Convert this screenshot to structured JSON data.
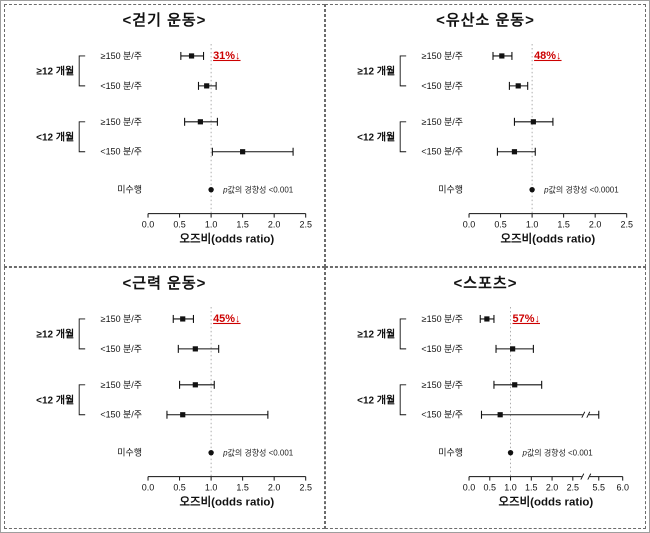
{
  "chart_data": [
    {
      "type": "forest",
      "title": "<걷기 운동>",
      "xlabel": "오즈비(odds ratio)",
      "x_ticks": [
        "0.0",
        "0.5",
        "1.0",
        "1.5",
        "2.0",
        "2.5"
      ],
      "x_tick_values": [
        0,
        0.5,
        1.0,
        1.5,
        2.0,
        2.5
      ],
      "xlim": [
        0,
        2.5
      ],
      "ref_line": 1.0,
      "grid": false,
      "annotation": "31%↓",
      "annotation_color": "#cc0000",
      "p_trend": "p값의 경향성 <0.001",
      "groups": [
        {
          "label": "≥12 개월",
          "rows": [
            {
              "label": "≥150 분/주",
              "or": 0.69,
              "ci_low": 0.52,
              "ci_high": 0.88
            },
            {
              "label": "<150 분/주",
              "or": 0.93,
              "ci_low": 0.8,
              "ci_high": 1.08
            }
          ]
        },
        {
          "label": "<12 개월",
          "rows": [
            {
              "label": "≥150 분/주",
              "or": 0.83,
              "ci_low": 0.58,
              "ci_high": 1.1
            },
            {
              "label": "<150 분/주",
              "or": 1.5,
              "ci_low": 1.02,
              "ci_high": 2.3
            }
          ]
        }
      ],
      "no_exercise": {
        "label": "미수행",
        "or": 1.0
      }
    },
    {
      "type": "forest",
      "title": "<유산소 운동>",
      "xlabel": "오즈비(odds ratio)",
      "x_ticks": [
        "0.0",
        "0.5",
        "1.0",
        "1.5",
        "2.0",
        "2.5"
      ],
      "x_tick_values": [
        0,
        0.5,
        1.0,
        1.5,
        2.0,
        2.5
      ],
      "xlim": [
        0,
        2.5
      ],
      "ref_line": 1.0,
      "grid": false,
      "annotation": "48%↓",
      "annotation_color": "#cc0000",
      "p_trend": "p값의 경향성 <0.0001",
      "groups": [
        {
          "label": "≥12 개월",
          "rows": [
            {
              "label": "≥150 분/주",
              "or": 0.52,
              "ci_low": 0.38,
              "ci_high": 0.68
            },
            {
              "label": "<150 분/주",
              "or": 0.78,
              "ci_low": 0.64,
              "ci_high": 0.93
            }
          ]
        },
        {
          "label": "<12 개월",
          "rows": [
            {
              "label": "≥150 분/주",
              "or": 1.02,
              "ci_low": 0.72,
              "ci_high": 1.33
            },
            {
              "label": "<150 분/주",
              "or": 0.72,
              "ci_low": 0.45,
              "ci_high": 1.05
            }
          ]
        }
      ],
      "no_exercise": {
        "label": "미수행",
        "or": 1.0
      }
    },
    {
      "type": "forest",
      "title": "<근력 운동>",
      "xlabel": "오즈비(odds ratio)",
      "x_ticks": [
        "0.0",
        "0.5",
        "1.0",
        "1.5",
        "2.0",
        "2.5"
      ],
      "x_tick_values": [
        0,
        0.5,
        1.0,
        1.5,
        2.0,
        2.5
      ],
      "xlim": [
        0,
        2.5
      ],
      "ref_line": 1.0,
      "grid": false,
      "annotation": "45%↓",
      "annotation_color": "#cc0000",
      "p_trend": "p값의 경향성 <0.001",
      "groups": [
        {
          "label": "≥12 개월",
          "rows": [
            {
              "label": "≥150 분/주",
              "or": 0.55,
              "ci_low": 0.4,
              "ci_high": 0.72
            },
            {
              "label": "<150 분/주",
              "or": 0.75,
              "ci_low": 0.48,
              "ci_high": 1.12
            }
          ]
        },
        {
          "label": "<12 개월",
          "rows": [
            {
              "label": "≥150 분/주",
              "or": 0.75,
              "ci_low": 0.5,
              "ci_high": 1.05
            },
            {
              "label": "<150 분/주",
              "or": 0.55,
              "ci_low": 0.3,
              "ci_high": 1.9
            }
          ]
        }
      ],
      "no_exercise": {
        "label": "미수행",
        "or": 1.0
      }
    },
    {
      "type": "forest",
      "title": "<스포츠>",
      "xlabel": "오즈비(odds ratio)",
      "x_ticks": [
        "0.0",
        "0.5",
        "1.0",
        "1.5",
        "2.0",
        "2.5",
        "5.5",
        "6.0"
      ],
      "x_tick_values": [
        0,
        0.5,
        1.0,
        1.5,
        2.0,
        2.5,
        5.5,
        6.0
      ],
      "xlim": [
        0,
        6.0
      ],
      "axis_break": {
        "after": 2.5,
        "resume": 5.5
      },
      "ref_line": 1.0,
      "grid": false,
      "annotation": "57%↓",
      "annotation_color": "#cc0000",
      "p_trend": "p값의 경향성 <0.001",
      "groups": [
        {
          "label": "≥12 개월",
          "rows": [
            {
              "label": "≥150 분/주",
              "or": 0.43,
              "ci_low": 0.27,
              "ci_high": 0.6
            },
            {
              "label": "<150 분/주",
              "or": 1.05,
              "ci_low": 0.65,
              "ci_high": 1.55
            }
          ]
        },
        {
          "label": "<12 개월",
          "rows": [
            {
              "label": "≥150 분/주",
              "or": 1.1,
              "ci_low": 0.6,
              "ci_high": 1.75
            },
            {
              "label": "<150 분/주",
              "or": 0.75,
              "ci_low": 0.3,
              "ci_high": 5.5
            }
          ]
        }
      ],
      "no_exercise": {
        "label": "미수행",
        "or": 1.0
      }
    }
  ]
}
